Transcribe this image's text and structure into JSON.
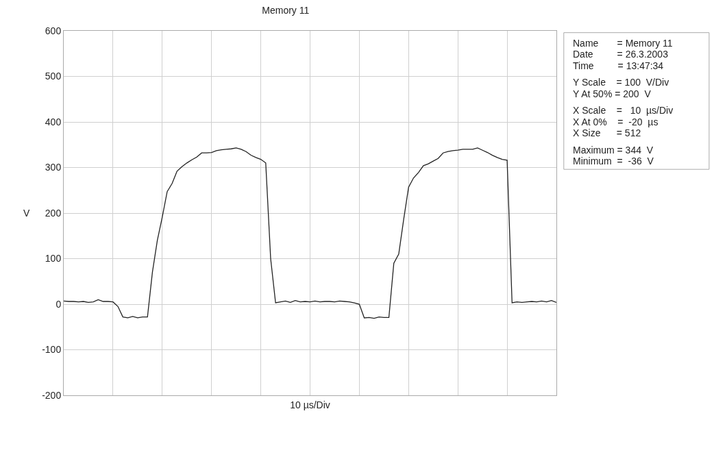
{
  "chart_data": {
    "type": "line",
    "title": "Memory 11",
    "xlabel": "10 µs/Div",
    "ylabel": "V",
    "categories": [
      null,
      null,
      null,
      null,
      null,
      null,
      null,
      null,
      null,
      null,
      null,
      null,
      null,
      null,
      null,
      null,
      null,
      null,
      null,
      null,
      null,
      null,
      null,
      null,
      null,
      null,
      null,
      null,
      null,
      null,
      null,
      null,
      null,
      null,
      null,
      null,
      null,
      null,
      null,
      null,
      null,
      null,
      null,
      null,
      null,
      null,
      null,
      null,
      null,
      null,
      null,
      null,
      null,
      null,
      null,
      null,
      null,
      null,
      null,
      null,
      null,
      null,
      null,
      null,
      null,
      null,
      null,
      null,
      null,
      null,
      null,
      null,
      null,
      null,
      null,
      null,
      null,
      null,
      null,
      null,
      null,
      null,
      null,
      null,
      null,
      null,
      null,
      null,
      null,
      null,
      null,
      null,
      null,
      null,
      null,
      null,
      null,
      null,
      null,
      null,
      null
    ],
    "series": [
      {
        "color": "#222222",
        "values": [
          7,
          6,
          6,
          5,
          6,
          4,
          5,
          10,
          6,
          6,
          5,
          -5,
          -28,
          -30,
          -27,
          -30,
          -28,
          -28,
          70,
          140,
          191,
          247,
          265,
          292,
          302,
          310,
          317,
          323,
          332,
          332,
          333,
          337,
          339,
          340,
          341,
          343,
          340,
          335,
          327,
          322,
          318,
          310,
          100,
          3,
          5,
          7,
          4,
          8,
          5,
          6,
          5,
          7,
          5,
          6,
          6,
          5,
          7,
          6,
          5,
          3,
          0,
          -30,
          -29,
          -31,
          -28,
          -29,
          -29,
          90,
          110,
          186,
          257,
          277,
          289,
          304,
          308,
          314,
          320,
          332,
          335,
          337,
          338,
          340,
          340,
          340,
          343,
          338,
          333,
          327,
          322,
          318,
          316,
          3,
          5,
          4,
          5,
          6,
          5,
          7,
          5,
          8,
          4
        ]
      }
    ],
    "ylim": [
      -200,
      600
    ],
    "yticks": [
      -200,
      -100,
      0,
      100,
      200,
      300,
      400,
      500,
      600
    ],
    "grid": true,
    "marker": "none",
    "line_style": "solid",
    "annotations": [
      "Name       = Memory 11",
      "Date         = 26.3.2003",
      "Time         = 13:47:34",
      "Y Scale    = 100  V/Div",
      "Y At 50% = 200  V",
      "X Scale    =   10  µs/Div",
      "X At 0%    =  -20  µs",
      "X Size      = 512",
      "Maximum = 344  V",
      "Minimum  =  -36  V"
    ]
  }
}
